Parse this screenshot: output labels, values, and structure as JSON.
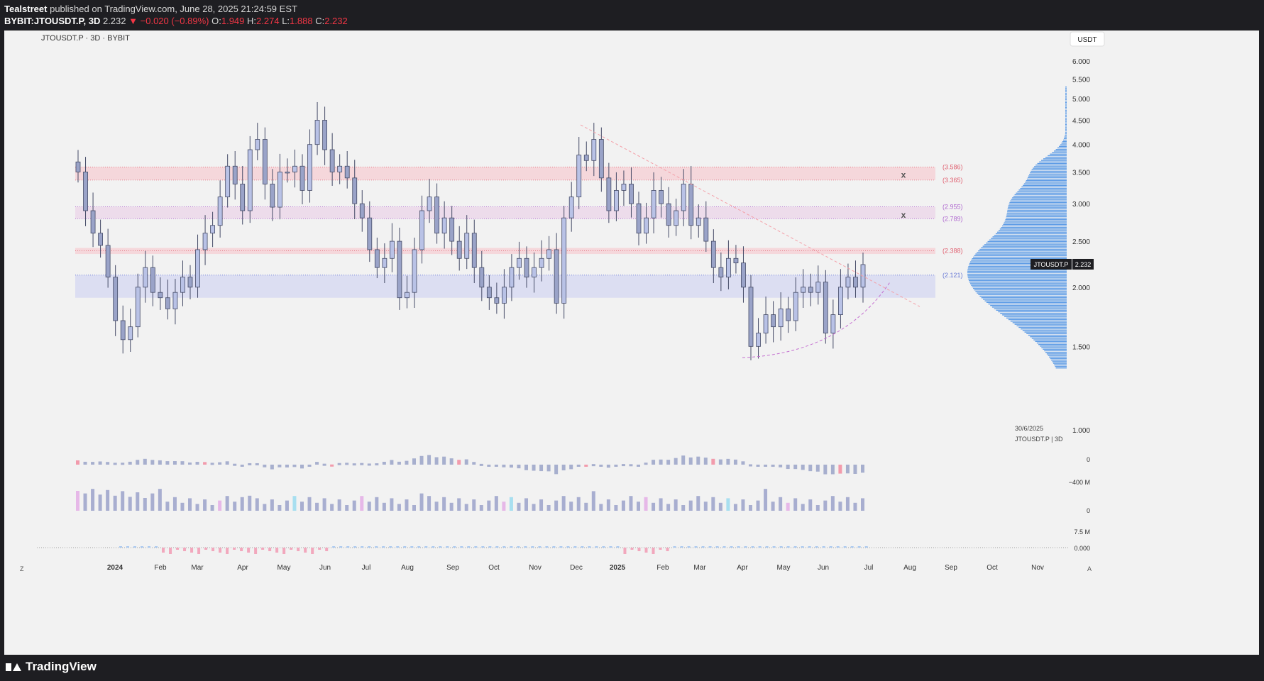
{
  "header": {
    "publisher": "Tealstreet",
    "published_text": "published on TradingView.com, June 28, 2025 21:24:59 EST",
    "symbol": "BYBIT:JTOUSDT.P, 3D",
    "last": "2.232",
    "change": "−0.020 (−0.89%)",
    "o_label": "O:",
    "o": "1.949",
    "h_label": "H:",
    "h": "2.274",
    "l_label": "L:",
    "l": "1.888",
    "c_label": "C:",
    "c": "2.232"
  },
  "chart_title": "JTOUSDT.P · 3D · BYBIT",
  "currency": "USDT",
  "footer": {
    "brand": "TradingView"
  },
  "colors": {
    "bg": "#f2f2f2",
    "candle": "#9aa3c8",
    "candle_border": "#444a66",
    "trend": "#f4a0a8",
    "curve": "#c46fd0",
    "profile": "#2a7de1",
    "price_tag": "#1e1e22"
  },
  "chart_data": {
    "type": "candlestick",
    "y_scale": "log",
    "y_ticks": [
      "6.000",
      "5.500",
      "5.000",
      "4.500",
      "4.000",
      "3.500",
      "3.000",
      "2.500",
      "2.000",
      "1.500",
      "1.000"
    ],
    "x_ticks": [
      "2024",
      "Feb",
      "Mar",
      "Apr",
      "May",
      "Jun",
      "Jul",
      "Aug",
      "Sep",
      "Oct",
      "Nov",
      "Dec",
      "2025",
      "Feb",
      "Mar",
      "Apr",
      "May",
      "Jun",
      "Jul",
      "Aug",
      "Sep",
      "Oct",
      "Nov"
    ],
    "last_price": 2.232,
    "last_price_label": "2.232",
    "symbol_tag": "JTOUSDT.P",
    "levels": [
      {
        "value": 3.586,
        "label": "(3.586)",
        "color": "#e06070"
      },
      {
        "value": 3.365,
        "label": "(3.365)",
        "color": "#e06070"
      },
      {
        "value": 2.955,
        "label": "(2.955)",
        "color": "#b06ad0"
      },
      {
        "value": 2.789,
        "label": "(2.789)",
        "color": "#b06ad0"
      },
      {
        "value": 2.388,
        "label": "(2.388)",
        "color": "#e06070"
      },
      {
        "value": 2.121,
        "label": "(2.121)",
        "color": "#6a7ad6"
      }
    ],
    "zones": [
      {
        "from": 3.365,
        "to": 3.586,
        "color": "#f5d4d8"
      },
      {
        "from": 2.789,
        "to": 2.955,
        "color": "#ecd9ea"
      },
      {
        "from": 2.35,
        "to": 2.42,
        "color": "#f5d4d8"
      },
      {
        "from": 1.9,
        "to": 2.121,
        "color": "#d9dcf2"
      }
    ],
    "markers": [
      {
        "symbol": "x",
        "value": 3.45
      },
      {
        "symbol": "x",
        "value": 2.84
      }
    ],
    "close_path": [
      3.5,
      2.9,
      2.6,
      2.45,
      2.1,
      1.7,
      1.55,
      1.65,
      2.0,
      2.2,
      1.95,
      1.9,
      1.8,
      1.95,
      2.1,
      2.0,
      2.4,
      2.6,
      2.7,
      3.1,
      3.6,
      3.3,
      2.9,
      3.9,
      4.1,
      3.3,
      2.95,
      3.5,
      3.5,
      3.6,
      3.2,
      4.0,
      4.5,
      3.9,
      3.5,
      3.6,
      3.4,
      3.0,
      2.8,
      2.4,
      2.2,
      2.3,
      2.5,
      1.9,
      1.95,
      2.4,
      2.9,
      3.1,
      2.6,
      2.8,
      2.5,
      2.3,
      2.6,
      2.2,
      2.0,
      1.9,
      1.85,
      2.0,
      2.2,
      2.3,
      2.1,
      2.2,
      2.3,
      2.4,
      1.85,
      2.8,
      3.1,
      3.8,
      3.7,
      4.1,
      3.4,
      2.9,
      3.2,
      3.3,
      3.0,
      2.6,
      2.8,
      3.2,
      3.0,
      2.7,
      2.9,
      3.3,
      2.7,
      2.8,
      2.5,
      2.2,
      2.1,
      2.3,
      2.25,
      2.0,
      1.5,
      1.6,
      1.75,
      1.65,
      1.8,
      1.7,
      1.95,
      2.0,
      1.95,
      2.05,
      1.6,
      1.75,
      2.0,
      2.1,
      2.0,
      2.232
    ],
    "profile_range": [
      1.35,
      5.3
    ],
    "date_label": "30/6/2025",
    "date_sublabel": "JTOUSDT.P | 3D",
    "ind1_labels": [
      "0",
      "−400 M"
    ],
    "ind2_labels": [
      "0",
      "7.5 M"
    ],
    "ind3_labels": [
      "0.000"
    ],
    "corner_left": "Z",
    "corner_right": "A"
  }
}
